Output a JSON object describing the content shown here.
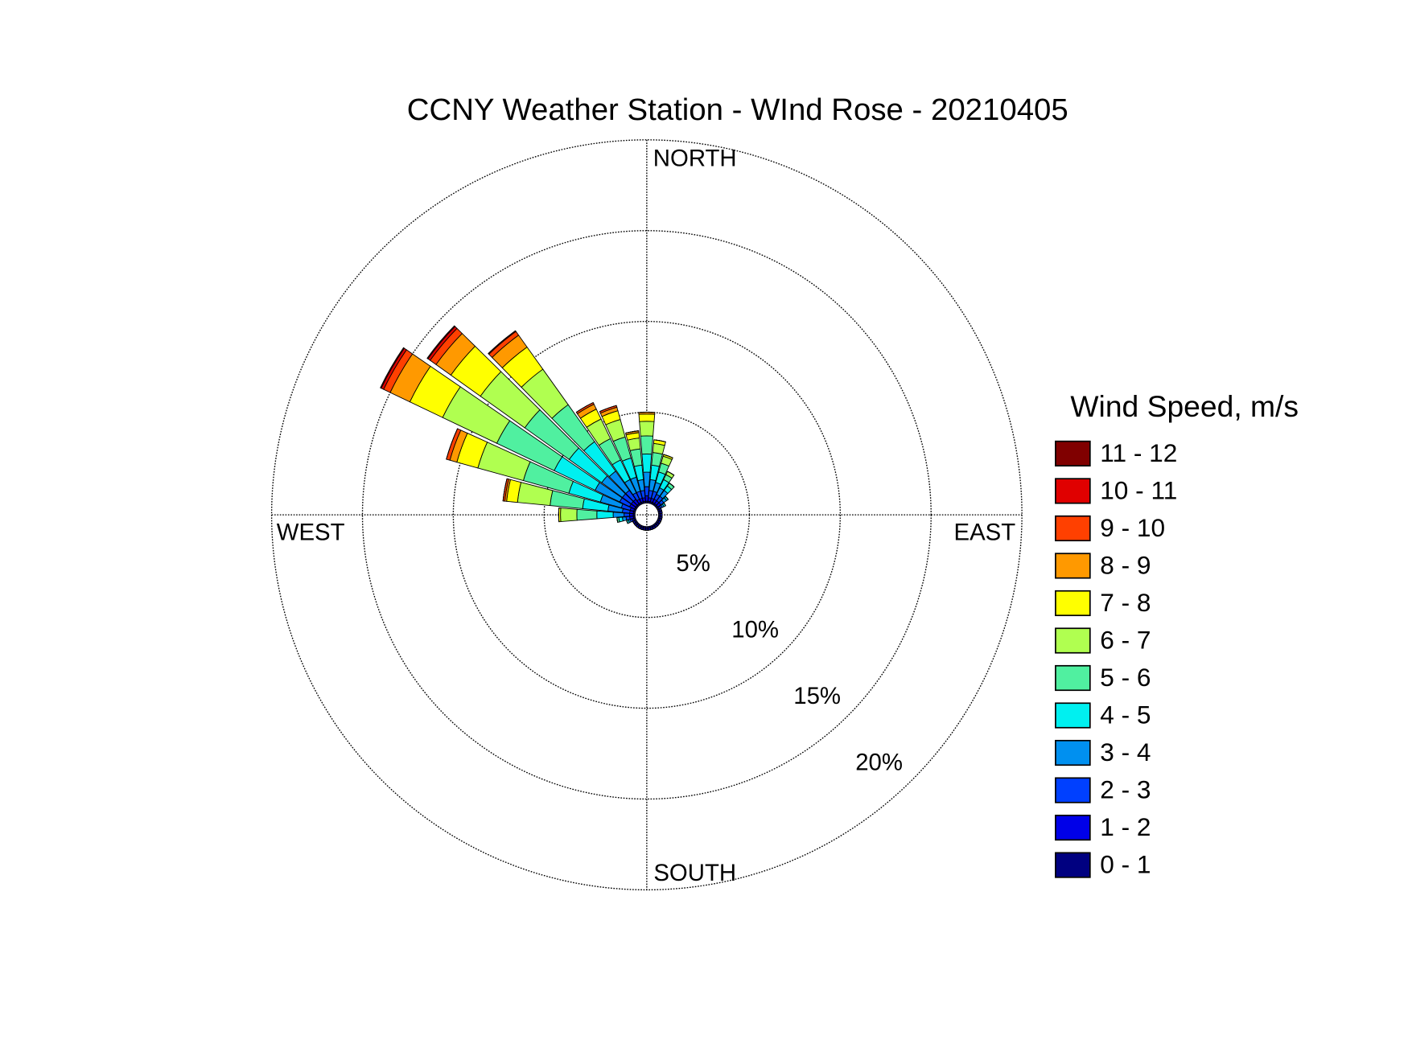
{
  "chart_data": {
    "type": "windrose",
    "title": "CCNY Weather Station - WInd Rose - 20210405",
    "legend_title": "Wind Speed, m/s",
    "compass": {
      "north": "NORTH",
      "east": "EAST",
      "south": "SOUTH",
      "west": "WEST"
    },
    "rlim": [
      0,
      20
    ],
    "rticks": [
      {
        "value": 5,
        "label": "5%"
      },
      {
        "value": 10,
        "label": "10%"
      },
      {
        "value": 15,
        "label": "15%"
      },
      {
        "value": 20,
        "label": "20%"
      }
    ],
    "grid": true,
    "legend": "right",
    "directions": [
      0,
      10,
      20,
      30,
      40,
      50,
      60,
      70,
      80,
      90,
      100,
      110,
      120,
      130,
      140,
      150,
      160,
      170,
      180,
      190,
      200,
      210,
      220,
      230,
      240,
      250,
      260,
      270,
      280,
      290,
      300,
      310,
      320,
      330,
      340,
      350
    ],
    "series": [
      {
        "name": "0 - 1",
        "color": "#000080",
        "values": [
          0.1,
          0.1,
          0.1,
          0.1,
          0.1,
          0.1,
          0.1,
          0.1,
          0.1,
          0.1,
          0.1,
          0.1,
          0.1,
          0.1,
          0.1,
          0.1,
          0.1,
          0.1,
          0.1,
          0.1,
          0.1,
          0.1,
          0.1,
          0.1,
          0.1,
          0.1,
          0.1,
          0.1,
          0.1,
          0.1,
          0.1,
          0.1,
          0.1,
          0.1,
          0.1,
          0.1
        ]
      },
      {
        "name": "1 - 2",
        "color": "#0000e8",
        "values": [
          0.3,
          0.2,
          0.2,
          0.2,
          0.2,
          0.2,
          0.1,
          0.1,
          0.1,
          0.1,
          0.1,
          0.1,
          0.1,
          0.1,
          0.1,
          0.1,
          0.1,
          0.1,
          0.1,
          0.1,
          0.1,
          0.1,
          0.1,
          0.1,
          0.1,
          0.1,
          0.2,
          0.2,
          0.2,
          0.2,
          0.3,
          0.3,
          0.3,
          0.2,
          0.2,
          0.2
        ]
      },
      {
        "name": "2 - 3",
        "color": "#0040ff",
        "values": [
          0.5,
          0.4,
          0.4,
          0.3,
          0.3,
          0.2,
          0.1,
          0,
          0,
          0,
          0,
          0,
          0,
          0,
          0,
          0,
          0,
          0,
          0,
          0,
          0,
          0,
          0,
          0,
          0,
          0.1,
          0.2,
          0.3,
          0.4,
          0.5,
          0.6,
          0.6,
          0.6,
          0.4,
          0.4,
          0.4
        ]
      },
      {
        "name": "3 - 4",
        "color": "#0090f0",
        "values": [
          0.8,
          0.6,
          0.5,
          0.4,
          0.4,
          0.2,
          0.1,
          0,
          0,
          0,
          0,
          0,
          0,
          0,
          0,
          0,
          0,
          0,
          0,
          0,
          0,
          0,
          0,
          0,
          0,
          0.1,
          0.2,
          0.6,
          0.8,
          1.2,
          1.5,
          1.4,
          1.3,
          0.8,
          0.8,
          0.6
        ]
      },
      {
        "name": "4 - 5",
        "color": "#00f0f0",
        "values": [
          1.0,
          0.8,
          0.6,
          0.5,
          0.3,
          0.1,
          0.1,
          0,
          0,
          0,
          0,
          0,
          0,
          0,
          0,
          0,
          0,
          0,
          0,
          0,
          0,
          0,
          0,
          0,
          0,
          0.1,
          0.2,
          0.9,
          1.4,
          1.8,
          2.5,
          2.2,
          2.0,
          1.2,
          1.1,
          0.8
        ]
      },
      {
        "name": "5 - 6",
        "color": "#50f0a0",
        "values": [
          1.0,
          0.7,
          0.5,
          0.3,
          0.2,
          0,
          0,
          0,
          0,
          0,
          0,
          0,
          0,
          0,
          0,
          0,
          0,
          0,
          0,
          0,
          0,
          0,
          0,
          0,
          0,
          0,
          0.1,
          1.1,
          1.8,
          2.6,
          3.5,
          3.0,
          2.5,
          1.3,
          1.2,
          0.9
        ]
      },
      {
        "name": "6 - 7",
        "color": "#b0ff50",
        "values": [
          0.8,
          0.5,
          0.4,
          0.2,
          0,
          0,
          0,
          0,
          0,
          0,
          0,
          0,
          0,
          0,
          0,
          0,
          0,
          0,
          0,
          0,
          0,
          0,
          0,
          0,
          0,
          0,
          0,
          0.9,
          1.8,
          2.6,
          3.3,
          3.0,
          2.4,
          1.2,
          1.0,
          0.6
        ]
      },
      {
        "name": "7 - 8",
        "color": "#ffff00",
        "values": [
          0.4,
          0.2,
          0.1,
          0,
          0,
          0,
          0,
          0,
          0,
          0,
          0,
          0,
          0,
          0,
          0,
          0,
          0,
          0,
          0,
          0,
          0,
          0,
          0,
          0,
          0,
          0,
          0,
          0.1,
          0.6,
          1.2,
          2.0,
          2.0,
          1.5,
          0.6,
          0.5,
          0.3
        ]
      },
      {
        "name": "8 - 9",
        "color": "#ff9900",
        "values": [
          0.1,
          0,
          0,
          0,
          0,
          0,
          0,
          0,
          0,
          0,
          0,
          0,
          0,
          0,
          0,
          0,
          0,
          0,
          0,
          0,
          0,
          0,
          0,
          0,
          0,
          0,
          0,
          0,
          0.1,
          0.4,
          1.2,
          1.0,
          0.8,
          0.3,
          0.2,
          0.1
        ]
      },
      {
        "name": "9 - 10",
        "color": "#ff4000",
        "values": [
          0,
          0,
          0,
          0,
          0,
          0,
          0,
          0,
          0,
          0,
          0,
          0,
          0,
          0,
          0,
          0,
          0,
          0,
          0,
          0,
          0,
          0,
          0,
          0,
          0,
          0,
          0,
          0,
          0.1,
          0.2,
          0.4,
          0.4,
          0.25,
          0.1,
          0.1,
          0
        ]
      },
      {
        "name": "10 - 11",
        "color": "#e00000",
        "values": [
          0,
          0,
          0,
          0,
          0,
          0,
          0,
          0,
          0,
          0,
          0,
          0,
          0,
          0,
          0,
          0,
          0,
          0,
          0,
          0,
          0,
          0,
          0,
          0,
          0,
          0,
          0,
          0,
          0,
          0,
          0.15,
          0.15,
          0.05,
          0,
          0,
          0
        ]
      },
      {
        "name": "11 - 12",
        "color": "#800000",
        "values": [
          0,
          0,
          0,
          0,
          0,
          0,
          0,
          0,
          0,
          0,
          0,
          0,
          0,
          0,
          0,
          0,
          0,
          0,
          0,
          0,
          0,
          0,
          0,
          0,
          0,
          0,
          0,
          0,
          0,
          0,
          0.05,
          0.05,
          0,
          0,
          0,
          0
        ]
      }
    ]
  }
}
